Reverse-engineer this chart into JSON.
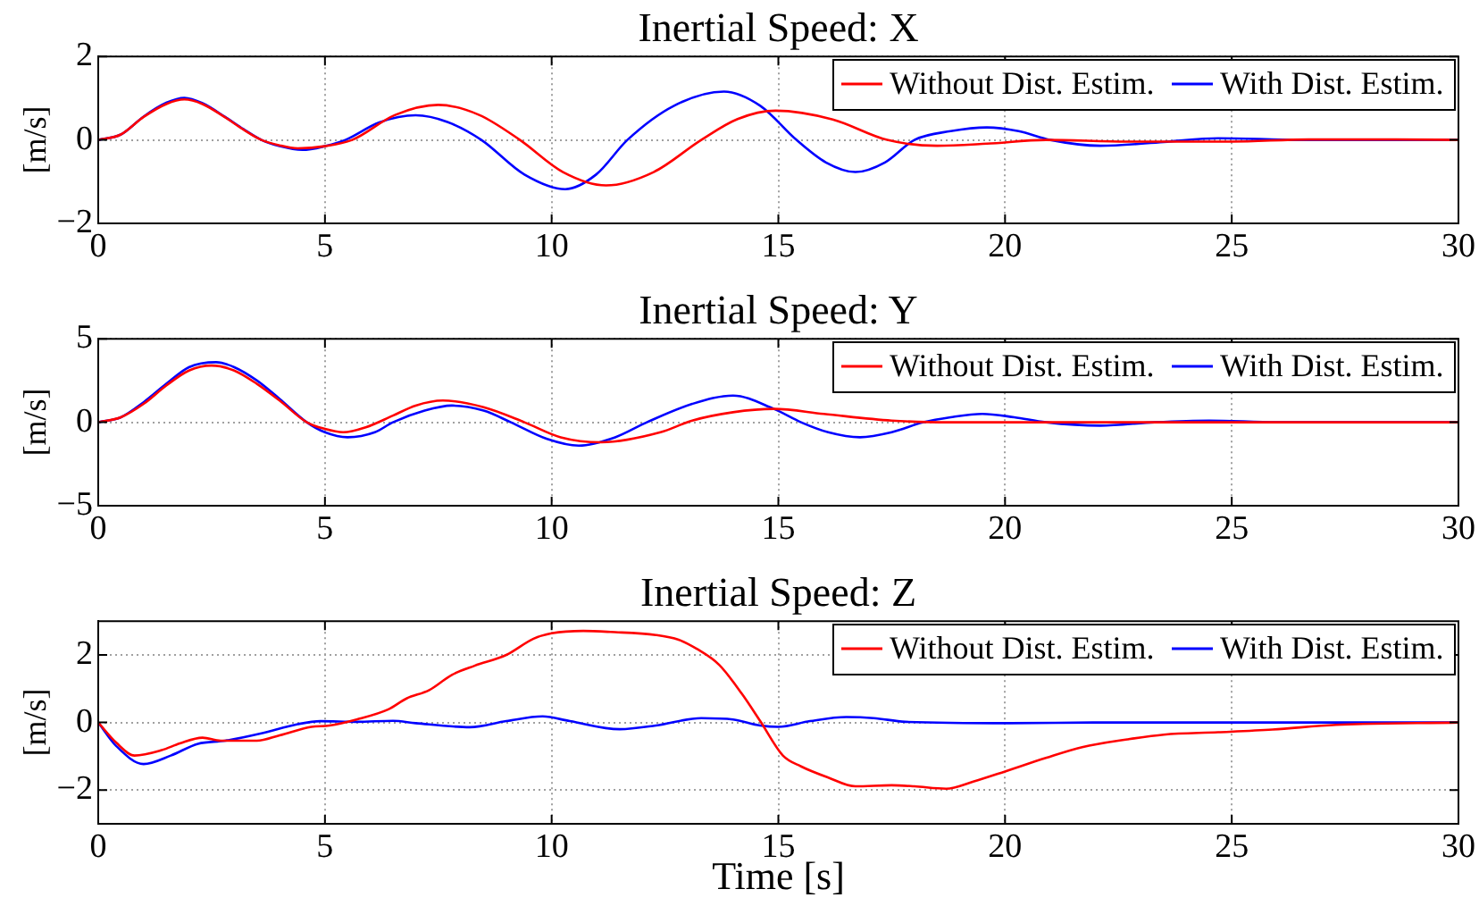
{
  "chart_data": [
    {
      "type": "line",
      "title": "Inertial Speed: X",
      "ylabel": "[m/s]",
      "xlim": [
        0,
        30
      ],
      "xticks": [
        0,
        5,
        10,
        15,
        20,
        25,
        30
      ],
      "ylim": [
        -2,
        2
      ],
      "yticks": [
        -2,
        0,
        2
      ],
      "grid": true,
      "legend": "top right",
      "marker": "none",
      "series": [
        {
          "name": "Without Dist. Estim.",
          "color": "#ff0000",
          "x": [
            0,
            0.5,
            1,
            1.5,
            1.9,
            2.3,
            2.8,
            3.2,
            3.6,
            4.0,
            4.4,
            5.0,
            5.6,
            6.55,
            7.5,
            8.4,
            9.3,
            10.25,
            11.2,
            12.25,
            13.3,
            14.1,
            14.94,
            16.2,
            17.4,
            18.5,
            19.6,
            20.9,
            22.7,
            25,
            26.7,
            28.6,
            30
          ],
          "values": [
            0,
            0.13,
            0.55,
            0.86,
            0.97,
            0.86,
            0.54,
            0.25,
            0,
            -0.13,
            -0.2,
            -0.15,
            0,
            0.6,
            0.84,
            0.6,
            0,
            -0.77,
            -1.09,
            -0.77,
            0,
            0.5,
            0.7,
            0.49,
            0,
            -0.14,
            -0.09,
            0,
            -0.04,
            -0.04,
            0.01,
            0.01,
            0
          ]
        },
        {
          "name": "With Dist. Estim.",
          "color": "#0000ff",
          "x": [
            0,
            0.5,
            1,
            1.5,
            1.9,
            2.3,
            2.8,
            3.2,
            3.6,
            4.0,
            4.5,
            5.0,
            5.45,
            6.2,
            7.0,
            7.7,
            8.45,
            9.4,
            10.3,
            10.98,
            11.67,
            12.7,
            13.8,
            14.6,
            15.4,
            16.05,
            16.7,
            17.35,
            18.0,
            18.8,
            19.6,
            20.3,
            21.0,
            22.1,
            23.5,
            24.7,
            26.5,
            30
          ],
          "values": [
            0,
            0.13,
            0.56,
            0.89,
            1.01,
            0.88,
            0.55,
            0.26,
            0,
            -0.15,
            -0.24,
            -0.15,
            0,
            0.42,
            0.59,
            0.43,
            0,
            -0.83,
            -1.18,
            -0.83,
            0,
            0.82,
            1.16,
            0.82,
            0,
            -0.54,
            -0.77,
            -0.54,
            0,
            0.21,
            0.3,
            0.21,
            0,
            -0.14,
            -0.05,
            0.04,
            0,
            0
          ]
        }
      ]
    },
    {
      "type": "line",
      "title": "Inertial Speed: Y",
      "ylabel": "[m/s]",
      "xlim": [
        0,
        30
      ],
      "xticks": [
        0,
        5,
        10,
        15,
        20,
        25,
        30
      ],
      "ylim": [
        -5,
        5
      ],
      "yticks": [
        -5,
        0,
        5
      ],
      "grid": true,
      "legend": "top right",
      "marker": "none",
      "series": [
        {
          "name": "Without Dist. Estim.",
          "color": "#ff0000",
          "x": [
            0,
            0.5,
            1,
            1.5,
            2,
            2.5,
            3,
            3.5,
            4,
            4.6,
            5,
            5.4,
            5.9,
            6.5,
            7,
            7.6,
            8.5,
            9.4,
            10.2,
            11.1,
            12.4,
            13.1,
            14,
            14.9,
            16,
            17.5,
            18.8,
            21,
            30
          ],
          "values": [
            0,
            0.3,
            1.1,
            2.2,
            3.1,
            3.4,
            3.1,
            2.3,
            1.3,
            0,
            -0.4,
            -0.6,
            -0.3,
            0.4,
            1.0,
            1.3,
            0.9,
            0,
            -0.9,
            -1.2,
            -0.6,
            0.1,
            0.6,
            0.8,
            0.5,
            0.1,
            0,
            0,
            0
          ]
        },
        {
          "name": "With Dist. Estim.",
          "color": "#0000ff",
          "x": [
            0,
            0.5,
            1,
            1.5,
            2,
            2.6,
            3,
            3.5,
            4,
            4.6,
            5,
            5.5,
            6.1,
            6.5,
            7.2,
            7.8,
            8.5,
            9.1,
            9.9,
            10.6,
            11.4,
            12.1,
            13.1,
            14,
            14.9,
            15.5,
            16.1,
            16.8,
            17.5,
            18.2,
            18.8,
            19.5,
            20.2,
            20.9,
            22.1,
            23.3,
            24.5,
            26,
            30
          ],
          "values": [
            0,
            0.3,
            1.2,
            2.3,
            3.3,
            3.6,
            3.3,
            2.5,
            1.4,
            0,
            -0.6,
            -0.9,
            -0.6,
            0,
            0.7,
            1.0,
            0.7,
            0,
            -1.0,
            -1.4,
            -0.9,
            0,
            1.1,
            1.6,
            0.8,
            0,
            -0.6,
            -0.9,
            -0.6,
            0,
            0.3,
            0.5,
            0.3,
            0,
            -0.2,
            0,
            0.1,
            0,
            0
          ]
        }
      ]
    },
    {
      "type": "line",
      "title": "Inertial Speed: Z",
      "xlabel": "Time [s]",
      "ylabel": "[m/s]",
      "xlim": [
        0,
        30
      ],
      "xticks": [
        0,
        5,
        10,
        15,
        20,
        25,
        30
      ],
      "ylim": [
        -3,
        3
      ],
      "yticks": [
        -2,
        0,
        2
      ],
      "grid": true,
      "legend": "top right",
      "marker": "none",
      "series": [
        {
          "name": "Without Dist. Estim.",
          "color": "#ff0000",
          "x": [
            0,
            0.4,
            0.8,
            1.4,
            1.8,
            2.3,
            2.7,
            3.5,
            4.0,
            4.7,
            5.1,
            5.7,
            6.4,
            6.8,
            7.3,
            7.8,
            8.3,
            9.0,
            9.6,
            10.0,
            10.7,
            11.3,
            12.3,
            12.8,
            13.2,
            13.7,
            14.2,
            14.6,
            15.1,
            15.5,
            16.1,
            16.7,
            17.5,
            18.0,
            18.7,
            19.3,
            20.0,
            20.9,
            21.7,
            22.7,
            23.5,
            24.7,
            25.9,
            27.3,
            30
          ],
          "values": [
            0,
            -0.6,
            -0.98,
            -0.82,
            -0.62,
            -0.45,
            -0.54,
            -0.54,
            -0.38,
            -0.13,
            -0.09,
            0.09,
            0.39,
            0.71,
            0.96,
            1.41,
            1.68,
            2.0,
            2.48,
            2.64,
            2.71,
            2.68,
            2.59,
            2.45,
            2.18,
            1.7,
            0.84,
            0.04,
            -0.98,
            -1.3,
            -1.63,
            -1.89,
            -1.86,
            -1.89,
            -1.96,
            -1.75,
            -1.45,
            -1.05,
            -0.73,
            -0.5,
            -0.36,
            -0.29,
            -0.21,
            -0.07,
            0
          ]
        },
        {
          "name": "With Dist. Estim.",
          "color": "#0000ff",
          "x": [
            0,
            0.4,
            1.0,
            1.6,
            2.2,
            2.8,
            3.6,
            4.4,
            4.9,
            5.7,
            6.5,
            7.0,
            8.2,
            9.0,
            9.8,
            10.4,
            11.5,
            12.3,
            13.3,
            14.0,
            14.6,
            15.0,
            15.7,
            16.5,
            17.1,
            17.8,
            20.1,
            22,
            30
          ],
          "values": [
            0,
            -0.7,
            -1.23,
            -0.98,
            -0.63,
            -0.54,
            -0.32,
            -0.05,
            0.04,
            0.02,
            0.05,
            -0.02,
            -0.14,
            0.04,
            0.18,
            0.04,
            -0.2,
            -0.09,
            0.13,
            0.09,
            -0.09,
            -0.13,
            0.04,
            0.16,
            0.13,
            0.02,
            -0.02,
            0,
            0
          ]
        }
      ]
    }
  ]
}
